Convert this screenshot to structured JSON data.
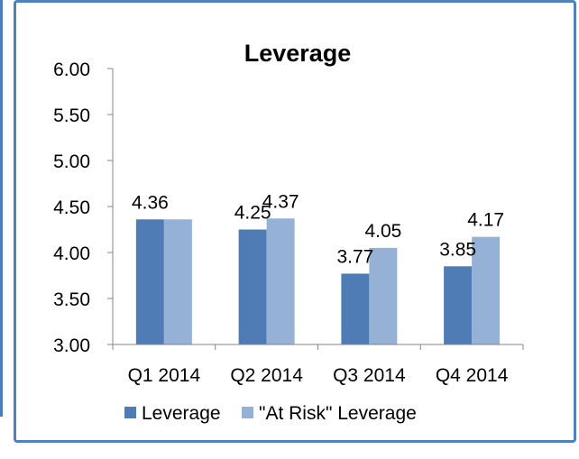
{
  "chart_data": {
    "type": "bar",
    "title": "Leverage",
    "categories": [
      "Q1 2014",
      "Q2 2014",
      "Q3 2014",
      "Q4 2014"
    ],
    "series": [
      {
        "name": "Leverage",
        "values": [
          4.36,
          4.25,
          3.77,
          3.85
        ],
        "labels": [
          "4.36",
          "4.25",
          "3.77",
          "3.85"
        ],
        "color": "#4f7cb5"
      },
      {
        "name": "\"At Risk\" Leverage",
        "values": [
          4.36,
          4.37,
          4.05,
          4.17
        ],
        "labels": [
          "",
          "4.37",
          "4.05",
          "4.17"
        ],
        "color": "#95b1d6"
      }
    ],
    "ylim": [
      3.0,
      6.0
    ],
    "yticks": [
      "3.00",
      "3.50",
      "4.00",
      "4.50",
      "5.00",
      "5.50",
      "6.00"
    ],
    "grid": false,
    "legend": "bottom"
  }
}
